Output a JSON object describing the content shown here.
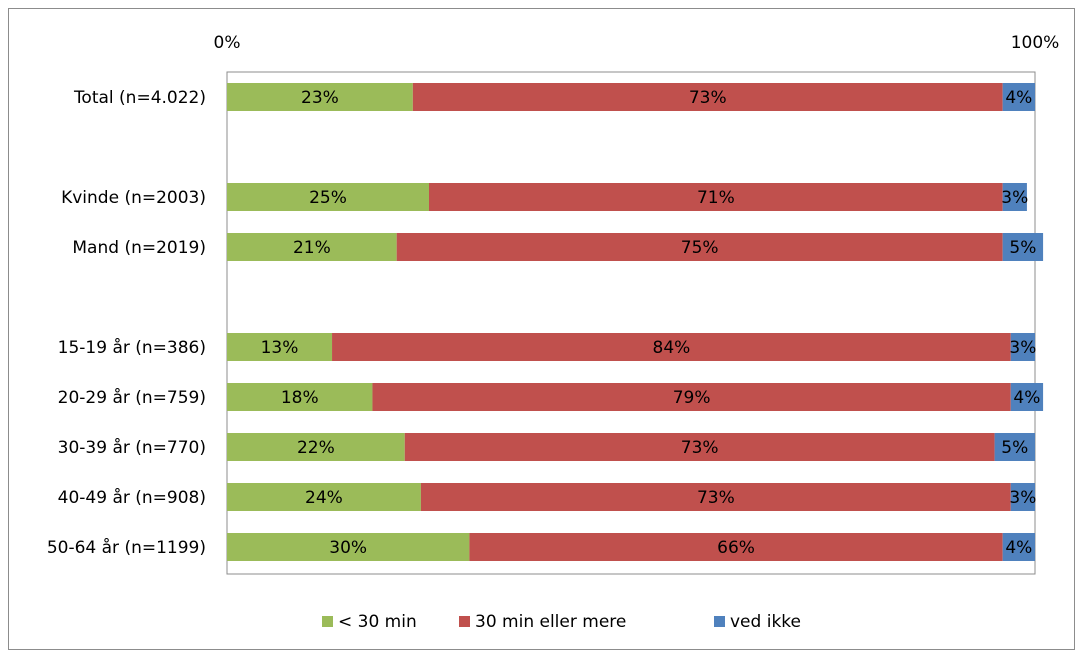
{
  "chart_data": {
    "type": "bar",
    "orientation": "horizontal",
    "stacked": true,
    "title": "",
    "xlabel": "",
    "ylabel": "",
    "xlim": [
      0,
      100
    ],
    "x_tick_labels": [
      "0%",
      "100%"
    ],
    "grid": false,
    "legend_position": "bottom",
    "categories": [
      "Total (n=4.022)",
      "Kvinde (n=2003)",
      "Mand (n=2019)",
      "15-19 år (n=386)",
      "20-29 år (n=759)",
      "30-39 år (n=770)",
      "40-49 år (n=908)",
      "50-64 år (n=1199)"
    ],
    "series": [
      {
        "name": "< 30 min",
        "color": "#9bbb59",
        "values": [
          23,
          25,
          21,
          13,
          18,
          22,
          24,
          30
        ],
        "labels": [
          "23%",
          "25%",
          "21%",
          "13%",
          "18%",
          "22%",
          "24%",
          "30%"
        ]
      },
      {
        "name": "30 min eller mere",
        "color": "#c0504d",
        "values": [
          73,
          71,
          75,
          84,
          79,
          73,
          73,
          66
        ],
        "labels": [
          "73%",
          "71%",
          "75%",
          "84%",
          "79%",
          "73%",
          "73%",
          "66%"
        ]
      },
      {
        "name": "ved ikke",
        "color": "#4f81bd",
        "values": [
          4,
          3,
          5,
          3,
          4,
          5,
          3,
          4
        ],
        "labels": [
          "4%",
          "3%",
          "5%",
          "3%",
          "4%",
          "5%",
          "3%",
          "4%"
        ]
      }
    ]
  }
}
